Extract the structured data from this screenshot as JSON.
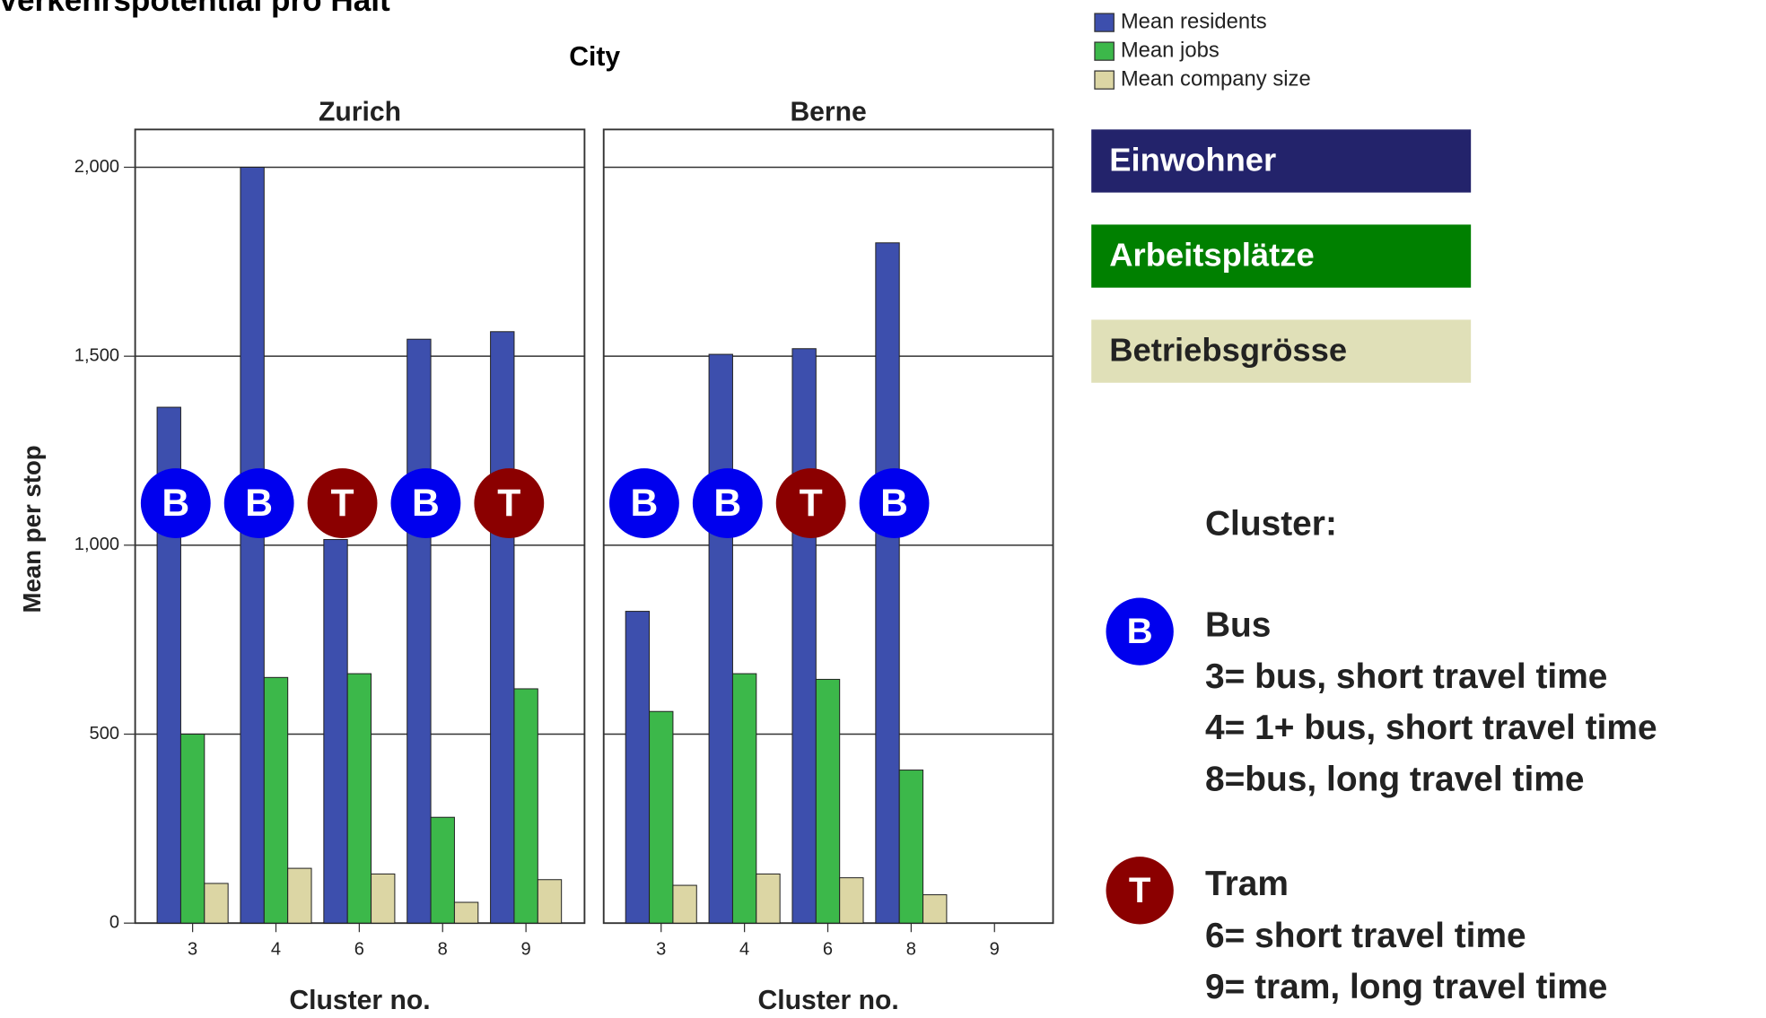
{
  "title": "Verkehrspotential pro Halt",
  "facet_title": "City",
  "chart_data": [
    {
      "type": "bar",
      "title": "Zurich",
      "x_label": "Cluster no.",
      "y_label": "Mean per stop",
      "categories": [
        "3",
        "4",
        "6",
        "8",
        "9"
      ],
      "badges": [
        "B",
        "B",
        "T",
        "B",
        "T"
      ],
      "series": [
        {
          "name": "Mean residents",
          "color": "#3d4fad",
          "values": [
            1365,
            2000,
            1015,
            1545,
            1565
          ]
        },
        {
          "name": "Mean jobs",
          "color": "#3cb84a",
          "values": [
            500,
            650,
            660,
            280,
            620
          ]
        },
        {
          "name": "Mean company size",
          "color": "#dcd6a4",
          "values": [
            105,
            145,
            130,
            55,
            115
          ]
        }
      ],
      "ylim": [
        0,
        2100
      ],
      "yticks": [
        0,
        500,
        {
          "value": 1000,
          "label": "1,000"
        },
        {
          "value": 1500,
          "label": "1,500"
        },
        {
          "value": 2000,
          "label": "2,000"
        }
      ],
      "grid": true
    },
    {
      "type": "bar",
      "title": "Berne",
      "x_label": "Cluster no.",
      "categories": [
        "3",
        "4",
        "6",
        "8",
        "9"
      ],
      "badges": [
        "B",
        "B",
        "T",
        "B",
        null
      ],
      "series": [
        {
          "color": "#3d4fad",
          "values": [
            825,
            1505,
            1520,
            1800,
            null
          ]
        },
        {
          "color": "#3cb84a",
          "values": [
            560,
            660,
            645,
            405,
            null
          ]
        },
        {
          "color": "#dcd6a4",
          "values": [
            100,
            130,
            120,
            75,
            null
          ]
        }
      ],
      "ylim": [
        0,
        2100
      ],
      "yticks": [
        0,
        500,
        1000,
        1500,
        2000
      ],
      "grid": true
    }
  ],
  "badge_colors": {
    "B": "#0000ee",
    "T": "#8b0000"
  },
  "boxes": [
    {
      "text": "Einwohner",
      "color": "#23236b",
      "text_color": "#ffffff"
    },
    {
      "text": "Arbeitsplätze",
      "color": "#008000",
      "text_color": "#ffffff"
    },
    {
      "text": "Betriebsgrösse",
      "color": "#e0e0b8",
      "text_color": "#222222"
    }
  ],
  "cluster_title": "Cluster:",
  "clusters": [
    {
      "badge": "B",
      "name": "Bus",
      "lines": [
        "3= bus, short travel time",
        "4= 1+ bus, short travel time",
        "8=bus, long travel time"
      ]
    },
    {
      "badge": "T",
      "name": "Tram",
      "lines": [
        "6= short travel time",
        "9= tram, long travel time"
      ]
    }
  ]
}
